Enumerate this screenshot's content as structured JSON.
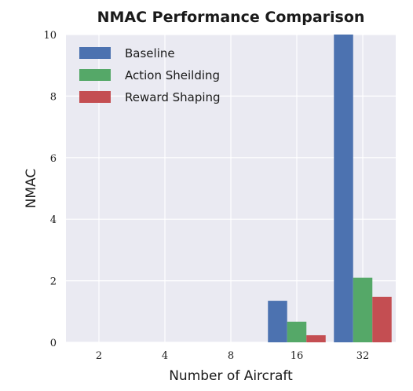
{
  "chart_data": {
    "type": "bar",
    "title": "NMAC Performance Comparison",
    "xlabel": "Number of Aircraft",
    "ylabel": "NMAC",
    "categories": [
      "2",
      "4",
      "8",
      "16",
      "32"
    ],
    "ylim": [
      0,
      10
    ],
    "yticks": [
      "0",
      "2",
      "4",
      "6",
      "8",
      "10"
    ],
    "grid": true,
    "legend_position": "top-left",
    "series": [
      {
        "name": "Baseline",
        "color": "#4c72b0",
        "values": [
          0,
          0,
          0,
          1.35,
          10.0
        ]
      },
      {
        "name": "Action Sheilding",
        "color": "#55a868",
        "values": [
          0,
          0,
          0,
          0.67,
          2.1
        ]
      },
      {
        "name": "Reward Shaping",
        "color": "#c44e52",
        "values": [
          0,
          0,
          0,
          0.23,
          1.48
        ]
      }
    ]
  }
}
